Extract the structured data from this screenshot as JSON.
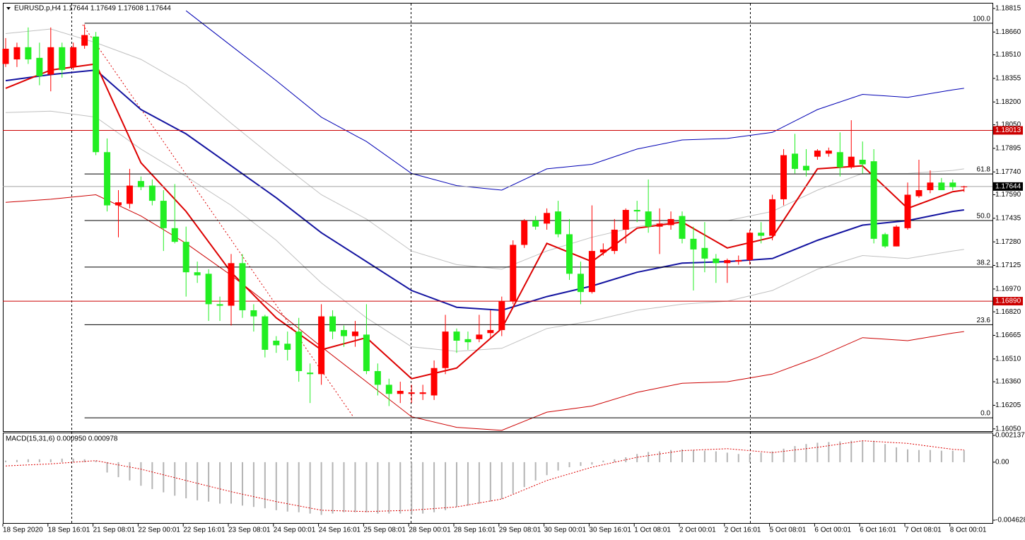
{
  "chart_data": [
    {
      "type": "candlestick",
      "title": "EURUSD.p,H4 1.17644 1.17649 1.17608 1.17644",
      "categories": [
        "18 Sep 2020",
        null,
        null,
        null,
        "18 Sep 16:01",
        null,
        null,
        null,
        "21 Sep 08:01",
        null,
        null,
        null,
        "22 Sep 00:01",
        null,
        null,
        null,
        "22 Sep 16:01",
        null,
        null,
        null,
        "23 Sep 08:01",
        null,
        null,
        null,
        "24 Sep 00:01",
        null,
        null,
        null,
        "24 Sep 16:01",
        null,
        null,
        null,
        "25 Sep 08:01",
        null,
        null,
        null,
        "28 Sep 00:01",
        null,
        null,
        null,
        "28 Sep 16:01",
        null,
        null,
        null,
        "29 Sep 08:01",
        null,
        null,
        null,
        "30 Sep 00:01",
        null,
        null,
        null,
        "30 Sep 16:01",
        null,
        null,
        null,
        "1 Oct 08:01",
        null,
        null,
        null,
        "2 Oct 00:01",
        null,
        null,
        null,
        "2 Oct 16:01",
        null,
        null,
        null,
        "5 Oct 08:01",
        null,
        null,
        null,
        "6 Oct 00:01",
        null,
        null,
        null,
        "6 Oct 16:01",
        null,
        null,
        null,
        "7 Oct 08:01",
        null,
        null,
        null,
        "8 Oct 00:01",
        null
      ],
      "open": [
        1.1845,
        1.1848,
        1.1856,
        1.1849,
        1.1838,
        1.1856,
        1.1843,
        1.1857,
        1.1863,
        1.1787,
        1.1752,
        1.1753,
        1.1768,
        1.1765,
        1.1755,
        1.1737,
        1.1728,
        1.1708,
        1.1707,
        1.1687,
        1.1686,
        1.1714,
        1.1683,
        1.1679,
        1.1663,
        1.1661,
        1.1669,
        1.1642,
        1.1641,
        1.1679,
        1.167,
        1.1666,
        1.1667,
        1.1643,
        1.1634,
        1.1628,
        1.1628,
        1.1628,
        1.1627,
        1.1645,
        1.1669,
        1.1664,
        1.1664,
        1.1668,
        1.167,
        1.1689,
        1.1726,
        1.1742,
        1.174,
        1.1748,
        1.1733,
        1.1707,
        1.1695,
        1.1721,
        1.1722,
        1.1736,
        1.1749,
        1.1748,
        1.1738,
        1.1739,
        1.1745,
        1.173,
        1.1724,
        1.1717,
        1.1714,
        1.1715,
        1.1716,
        1.1734,
        1.1732,
        1.1756,
        1.1786,
        1.1778,
        1.1784,
        1.1786,
        1.1787,
        1.1777,
        1.1782,
        1.1781,
        1.1733,
        1.1725,
        1.1737,
        1.1758,
        1.1762,
        1.1767,
        1.1767,
        1.17644
      ],
      "high": [
        1.1862,
        1.1859,
        1.1869,
        1.1859,
        1.1869,
        1.1859,
        1.1859,
        1.1871,
        1.1866,
        1.1796,
        1.1762,
        1.1776,
        1.1771,
        1.1769,
        1.1762,
        1.1766,
        1.1738,
        1.1715,
        1.171,
        1.1692,
        1.172,
        1.172,
        1.1687,
        1.168,
        1.1666,
        1.1669,
        1.1678,
        1.1648,
        1.1687,
        1.1683,
        1.1673,
        1.1676,
        1.1687,
        1.1648,
        1.1638,
        1.1636,
        1.1634,
        1.1634,
        1.165,
        1.168,
        1.1671,
        1.1669,
        1.168,
        1.1683,
        1.1692,
        1.1729,
        1.1743,
        1.1745,
        1.175,
        1.1755,
        1.1743,
        1.1715,
        1.1752,
        1.1727,
        1.1743,
        1.175,
        1.1755,
        1.1769,
        1.175,
        1.1748,
        1.1748,
        1.1738,
        1.1741,
        1.172,
        1.1717,
        1.1719,
        1.1736,
        1.1741,
        1.1759,
        1.1789,
        1.1799,
        1.1789,
        1.1789,
        1.179,
        1.18,
        1.1808,
        1.1794,
        1.1789,
        1.1734,
        1.1739,
        1.1767,
        1.1782,
        1.1775,
        1.177,
        1.1769,
        1.17649
      ],
      "low": [
        1.1843,
        1.1843,
        1.1845,
        1.1831,
        1.1827,
        1.1836,
        1.1841,
        1.1855,
        1.1785,
        1.1748,
        1.1731,
        1.175,
        1.1762,
        1.1752,
        1.1722,
        1.1727,
        1.1692,
        1.1701,
        1.1676,
        1.1676,
        1.1673,
        1.1678,
        1.1669,
        1.1652,
        1.1655,
        1.165,
        1.1636,
        1.1622,
        1.1634,
        1.1664,
        1.1659,
        1.1659,
        1.1641,
        1.1627,
        1.162,
        1.1622,
        1.1622,
        1.1624,
        1.1624,
        1.1641,
        1.1655,
        1.1657,
        1.1662,
        1.1664,
        1.1666,
        1.1687,
        1.1724,
        1.1736,
        1.1736,
        1.1731,
        1.1703,
        1.1687,
        1.1694,
        1.1719,
        1.172,
        1.1727,
        1.1741,
        1.1734,
        1.172,
        1.1736,
        1.1727,
        1.1696,
        1.1708,
        1.1701,
        1.1701,
        1.1713,
        1.1713,
        1.1727,
        1.1729,
        1.1752,
        1.1773,
        1.1771,
        1.1782,
        1.1784,
        1.1771,
        1.1776,
        1.1773,
        1.1727,
        1.1724,
        1.1725,
        1.1736,
        1.1757,
        1.176,
        1.1762,
        1.1762,
        1.17608
      ],
      "close": [
        1.1855,
        1.1856,
        1.1848,
        1.1837,
        1.1856,
        1.1841,
        1.1856,
        1.1864,
        1.1787,
        1.1752,
        1.1754,
        1.1765,
        1.1764,
        1.1755,
        1.1737,
        1.1728,
        1.1708,
        1.1706,
        1.1687,
        1.1686,
        1.1714,
        1.1683,
        1.1679,
        1.1657,
        1.166,
        1.1657,
        1.1643,
        1.1641,
        1.1679,
        1.1669,
        1.1666,
        1.1669,
        1.1643,
        1.1634,
        1.1628,
        1.163,
        1.1629,
        1.1629,
        1.1645,
        1.1669,
        1.1663,
        1.1662,
        1.1667,
        1.167,
        1.1689,
        1.1726,
        1.1742,
        1.1738,
        1.1747,
        1.1733,
        1.1707,
        1.1695,
        1.1722,
        1.1723,
        1.1736,
        1.1749,
        1.1748,
        1.1738,
        1.174,
        1.1743,
        1.173,
        1.1723,
        1.1717,
        1.1714,
        1.1716,
        1.1716,
        1.1734,
        1.1732,
        1.1756,
        1.1785,
        1.1776,
        1.1775,
        1.1788,
        1.1788,
        1.1777,
        1.1784,
        1.1779,
        1.173,
        1.1725,
        1.1738,
        1.1759,
        1.1762,
        1.1767,
        1.1762,
        1.1764,
        1.17644
      ],
      "up_color": "#ff0000",
      "down_color": "#22ee22",
      "lines": [
        {
          "color": "#c0c0c0",
          "width": 1,
          "x": [
            0,
            4,
            8,
            12,
            16,
            20,
            24,
            28,
            32,
            36,
            40,
            44,
            48,
            52,
            56,
            60,
            64,
            68,
            72,
            76,
            80,
            84,
            85
          ],
          "values": [
            1.1865,
            1.1868,
            1.1859,
            1.1848,
            1.1831,
            1.1806,
            1.1782,
            1.1759,
            1.1743,
            1.1722,
            1.1713,
            1.171,
            1.1722,
            1.1731,
            1.1738,
            1.1742,
            1.1742,
            1.1748,
            1.1762,
            1.1773,
            1.1773,
            1.1775,
            1.1776
          ]
        },
        {
          "color": "#c0c0c0",
          "width": 1,
          "x": [
            0,
            4,
            8,
            12,
            16,
            20,
            24,
            28,
            32,
            36,
            40,
            44,
            48,
            52,
            56,
            60,
            64,
            68,
            72,
            76,
            80,
            84,
            85
          ],
          "values": [
            1.1813,
            1.1814,
            1.181,
            1.1789,
            1.1771,
            1.1752,
            1.1729,
            1.1701,
            1.1678,
            1.1659,
            1.1656,
            1.1658,
            1.1671,
            1.1676,
            1.1683,
            1.1687,
            1.1689,
            1.1696,
            1.171,
            1.1719,
            1.1717,
            1.1722,
            1.1723
          ]
        },
        {
          "color": "#0000b4",
          "width": 1,
          "x": [
            16,
            20,
            24,
            28,
            32,
            36,
            40,
            44,
            48,
            52,
            56,
            60,
            64,
            68,
            72,
            76,
            80,
            84,
            85
          ],
          "values": [
            1.188,
            1.1857,
            1.1834,
            1.181,
            1.1794,
            1.1773,
            1.1765,
            1.1762,
            1.1776,
            1.1779,
            1.1789,
            1.1795,
            1.1796,
            1.18,
            1.1815,
            1.1825,
            1.1823,
            1.1828,
            1.1829
          ]
        },
        {
          "color": "#cc0000",
          "width": 1,
          "x": [
            0,
            4,
            8,
            12,
            16,
            20,
            24,
            28,
            32,
            36,
            40,
            44,
            48,
            52,
            56,
            60,
            64,
            68,
            72,
            76,
            80,
            84,
            85
          ],
          "values": [
            1.1754,
            1.1756,
            1.1759,
            1.1745,
            1.1727,
            1.1706,
            1.1683,
            1.1659,
            1.1636,
            1.1613,
            1.1606,
            1.1604,
            1.1616,
            1.162,
            1.1629,
            1.1635,
            1.1636,
            1.1641,
            1.1652,
            1.1665,
            1.1663,
            1.1668,
            1.1669
          ]
        },
        {
          "color": "#1414a0",
          "width": 2,
          "x": [
            0,
            4,
            8,
            12,
            16,
            20,
            24,
            28,
            32,
            36,
            40,
            44,
            48,
            52,
            56,
            60,
            64,
            68,
            72,
            76,
            80,
            84,
            85
          ],
          "values": [
            1.1834,
            1.1838,
            1.1841,
            1.1815,
            1.1799,
            1.1778,
            1.1757,
            1.1734,
            1.1715,
            1.1696,
            1.1685,
            1.1683,
            1.1692,
            1.1699,
            1.1708,
            1.1714,
            1.1715,
            1.1717,
            1.1729,
            1.1739,
            1.1742,
            1.1748,
            1.1749
          ]
        },
        {
          "color": "#dd0000",
          "width": 2,
          "x": [
            0,
            4,
            8,
            12,
            16,
            20,
            24,
            28,
            32,
            36,
            40,
            44,
            48,
            52,
            56,
            60,
            64,
            68,
            72,
            76,
            80,
            84,
            85
          ],
          "values": [
            1.1829,
            1.1841,
            1.1845,
            1.178,
            1.1748,
            1.1708,
            1.1678,
            1.1657,
            1.1665,
            1.1638,
            1.1645,
            1.1671,
            1.1727,
            1.1715,
            1.1737,
            1.1741,
            1.1724,
            1.1731,
            1.1776,
            1.1778,
            1.175,
            1.1761,
            1.1762
          ]
        }
      ],
      "hlines": [
        {
          "value": 1.18013,
          "color": "#cc0000"
        },
        {
          "value": 1.1689,
          "label": "1.16890",
          "color": "#cc0000"
        }
      ],
      "bid": 1.17644,
      "bid_color": "#a0a0a0",
      "fibo": {
        "high": 1.18718,
        "low": 1.16123,
        "color": "#000000",
        "levels": [
          {
            "value": 100,
            "label": "100.0"
          },
          61.8,
          {
            "value": 50,
            "label": "50.0"
          },
          38.2,
          23.6,
          {
            "value": 0,
            "label": "0.0"
          }
        ]
      },
      "ylim": [
        1.16035,
        1.18852
      ],
      "yticks": [
        1.18815,
        {
          "value": 1.1866,
          "label": "1.18660"
        },
        {
          "value": 1.1851,
          "label": "1.18510"
        },
        1.18355,
        {
          "value": 1.182,
          "label": "1.18200"
        },
        {
          "value": 1.1805,
          "label": "1.18050"
        },
        1.17895,
        {
          "value": 1.1774,
          "label": "1.17740"
        },
        {
          "value": 1.1759,
          "label": "1.17590"
        },
        1.17435,
        {
          "value": 1.1728,
          "label": "1.17280"
        },
        1.17125,
        {
          "value": 1.1697,
          "label": "1.16970"
        },
        {
          "value": 1.1682,
          "label": "1.16820"
        },
        1.16665,
        {
          "value": 1.1651,
          "label": "1.16510"
        },
        {
          "value": 1.1636,
          "label": "1.16360"
        },
        1.16205,
        {
          "value": 1.1605,
          "label": "1.16050"
        }
      ]
    },
    {
      "type": "macd",
      "title": "MACD(15,31,6) 0.000950 0.000978",
      "histogram": [
        0.000127,
        0.00018,
        0.000232,
        0.000232,
        0.000232,
        0.000285,
        0.000285,
        0.000232,
        0.000127,
        -0.000824,
        -0.001193,
        -0.001457,
        -0.00188,
        -0.002144,
        -0.002407,
        -0.002672,
        -0.002883,
        -0.003041,
        -0.003147,
        -0.003305,
        -0.003305,
        -0.003463,
        -0.003569,
        -0.003674,
        -0.003833,
        -0.003939,
        -0.003992,
        -0.004097,
        -0.004203,
        -0.004097,
        -0.003992,
        -0.003992,
        -0.003992,
        -0.004097,
        -0.004097,
        -0.004097,
        -0.004203,
        -0.004097,
        -0.003992,
        -0.003833,
        -0.003569,
        -0.003463,
        -0.003305,
        -0.003147,
        -0.002936,
        -0.002514,
        -0.001986,
        -0.001457,
        -0.001035,
        -0.000665,
        -0.000401,
        -0.000296,
        -0.00019,
        0.000127,
        0.000232,
        0.000391,
        0.000655,
        0.000813,
        0.000866,
        0.000972,
        0.001024,
        0.000972,
        0.000919,
        0.000866,
        0.00076,
        0.000655,
        0.000655,
        0.00076,
        0.000866,
        0.001077,
        0.001288,
        0.001447,
        0.001552,
        0.001605,
        0.001658,
        0.001711,
        0.001711,
        0.001711,
        0.001447,
        0.001183,
        0.001024,
        0.000972,
        0.000972,
        0.000919,
        0.000919,
        0.00095
      ],
      "histogram_color": "#b4b4b4",
      "signal": {
        "color": "#dd0000",
        "x": [
          0,
          4,
          8,
          12,
          16,
          20,
          24,
          28,
          32,
          36,
          40,
          44,
          48,
          52,
          56,
          60,
          64,
          68,
          72,
          76,
          80,
          84,
          85
        ],
        "values": [
          -0.000296,
          -0.000137,
          0.000127,
          -0.00056,
          -0.001457,
          -0.002355,
          -0.003147,
          -0.003833,
          -0.003939,
          -0.003833,
          -0.003569,
          -0.002936,
          -0.001457,
          -0.000401,
          0.000391,
          0.000919,
          0.001077,
          0.00076,
          0.001183,
          0.001711,
          0.0015,
          0.001024,
          0.000978
        ]
      },
      "ylim": [
        -0.004628,
        0.002137
      ],
      "yticks": [
        0.002137,
        {
          "value": 0,
          "label": "0.00"
        },
        -0.004628
      ]
    }
  ]
}
